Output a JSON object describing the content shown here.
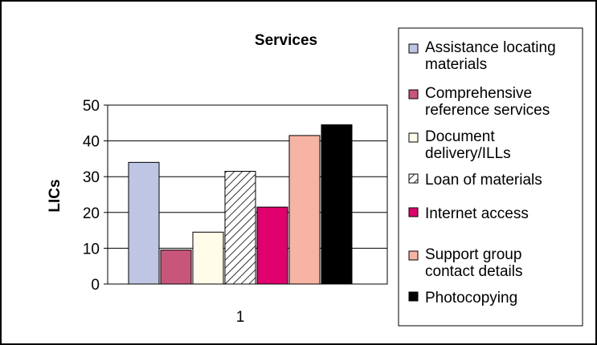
{
  "chart_data": {
    "type": "bar",
    "title": "Services",
    "xlabel": "",
    "ylabel": "LICs",
    "categories": [
      "1"
    ],
    "ylim": [
      0,
      50
    ],
    "yticks": [
      0,
      10,
      20,
      30,
      40,
      50
    ],
    "grid": true,
    "legend_position": "right",
    "series": [
      {
        "name": "Assistance locating materials",
        "values": [
          34
        ],
        "color": "#BFC6E3",
        "pattern": "solid"
      },
      {
        "name": "Comprehensive reference services",
        "values": [
          9.5
        ],
        "color": "#C8567A",
        "pattern": "solid"
      },
      {
        "name": "Document delivery/ILLs",
        "values": [
          14.5
        ],
        "color": "#FFFDEA",
        "pattern": "solid"
      },
      {
        "name": "Loan of materials",
        "values": [
          31.5
        ],
        "color": "#FFFFFF",
        "pattern": "hatch"
      },
      {
        "name": "Internet access",
        "values": [
          21.5
        ],
        "color": "#E0006E",
        "pattern": "solid"
      },
      {
        "name": "Support group contact details",
        "values": [
          41.5
        ],
        "color": "#F7B3A3",
        "pattern": "solid"
      },
      {
        "name": "Photocopying",
        "values": [
          44.5
        ],
        "color": "#000000",
        "pattern": "solid"
      }
    ]
  }
}
